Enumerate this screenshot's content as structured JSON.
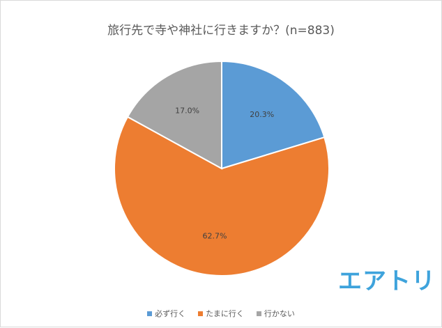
{
  "chart_data": {
    "type": "pie",
    "title": "旅行先で寺や神社に行きますか？(n=883)",
    "categories": [
      "必ず行く",
      "たまに行く",
      "行かない"
    ],
    "values": [
      20.3,
      62.7,
      17.0
    ],
    "data_labels": [
      "20.3%",
      "62.7%",
      "17.0%"
    ],
    "colors": [
      "#5b9bd5",
      "#ed7d31",
      "#a5a5a5"
    ],
    "legend_position": "bottom",
    "start_angle": "12 o'clock",
    "direction": "clockwise"
  },
  "logo": {
    "text": "エアトリ",
    "color": "#3ea3dc"
  }
}
